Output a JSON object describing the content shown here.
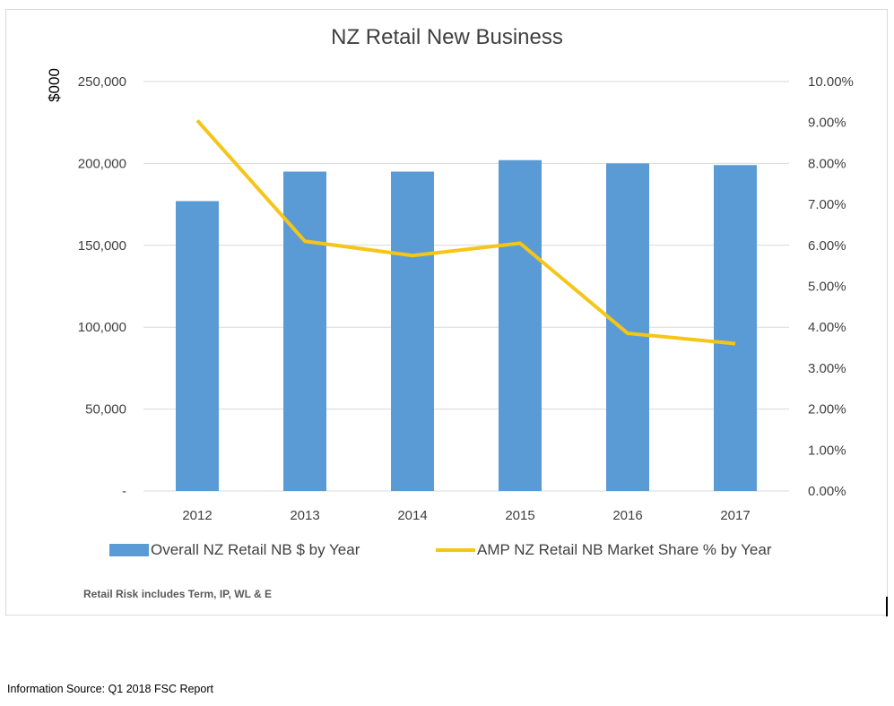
{
  "chart_data": {
    "type": "bar",
    "title": "NZ Retail New Business",
    "ylabel": "$000",
    "categories": [
      "2012",
      "2013",
      "2014",
      "2015",
      "2016",
      "2017"
    ],
    "series": [
      {
        "name": "Overall NZ Retail NB $ by Year",
        "type": "bar",
        "axis": "left",
        "values": [
          177000,
          195000,
          195000,
          202000,
          200000,
          199000
        ]
      },
      {
        "name": "AMP NZ Retail NB Market Share % by Year",
        "type": "line",
        "axis": "right",
        "values": [
          9.05,
          6.1,
          5.75,
          6.05,
          3.85,
          3.6
        ]
      }
    ],
    "ylim": [
      0,
      250000
    ],
    "y2lim": [
      0,
      10
    ],
    "left_ticks": [
      "-",
      "50,000",
      "100,000",
      "150,000",
      "200,000",
      "250,000"
    ],
    "right_ticks": [
      "0.00%",
      "1.00%",
      "2.00%",
      "3.00%",
      "4.00%",
      "5.00%",
      "6.00%",
      "7.00%",
      "8.00%",
      "9.00%",
      "10.00%"
    ],
    "grid": true,
    "legend_position": "bottom",
    "colors": {
      "bars": "#5b9bd5",
      "line": "#f5c518",
      "grid": "#d9d9d9"
    }
  },
  "footnote": "Retail Risk includes Term, IP, WL & E",
  "source": "Information Source: Q1 2018 FSC Report"
}
